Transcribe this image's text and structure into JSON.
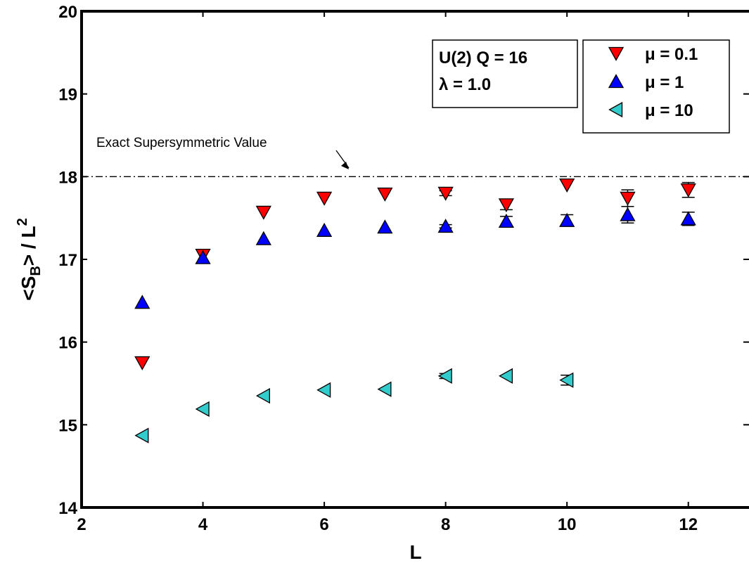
{
  "chart_data": {
    "type": "scatter",
    "title": "",
    "xlabel": "L",
    "ylabel": "<S_B> / L^2",
    "xlim": [
      2,
      13
    ],
    "ylim": [
      14,
      20
    ],
    "x_ticks": [
      2,
      4,
      6,
      8,
      10,
      12
    ],
    "y_ticks": [
      14,
      15,
      16,
      17,
      18,
      19,
      20
    ],
    "grid": false,
    "legend_position": "top-right",
    "info_box": [
      "U(2) Q = 16",
      "λ = 1.0"
    ],
    "reference_line": {
      "y": 18,
      "label": "Exact Supersymmetric Value"
    },
    "series": [
      {
        "name": "μ = 0.1",
        "marker": "triangle-down",
        "color": "#ff0000",
        "x": [
          3,
          4,
          5,
          6,
          7,
          8,
          9,
          10,
          11,
          12
        ],
        "y": [
          15.75,
          17.05,
          17.57,
          17.74,
          17.79,
          17.8,
          17.66,
          17.9,
          17.74,
          17.84
        ],
        "err": [
          0,
          0,
          0,
          0,
          0,
          0.03,
          0.06,
          0,
          0.1,
          0.09
        ]
      },
      {
        "name": "μ = 1",
        "marker": "triangle-up",
        "color": "#0000ff",
        "x": [
          3,
          4,
          5,
          6,
          7,
          8,
          9,
          10,
          11,
          12
        ],
        "y": [
          16.48,
          17.02,
          17.25,
          17.35,
          17.39,
          17.4,
          17.46,
          17.47,
          17.54,
          17.49
        ],
        "err": [
          0,
          0,
          0,
          0,
          0,
          0.02,
          0.06,
          0.07,
          0.1,
          0.08
        ]
      },
      {
        "name": "μ = 10",
        "marker": "triangle-left",
        "color": "#33cccc",
        "x": [
          3,
          4,
          5,
          6,
          7,
          8,
          9,
          10
        ],
        "y": [
          14.87,
          15.19,
          15.35,
          15.42,
          15.43,
          15.59,
          15.59,
          15.54
        ],
        "err": [
          0,
          0,
          0,
          0,
          0,
          0.03,
          0,
          0.06
        ]
      }
    ]
  }
}
